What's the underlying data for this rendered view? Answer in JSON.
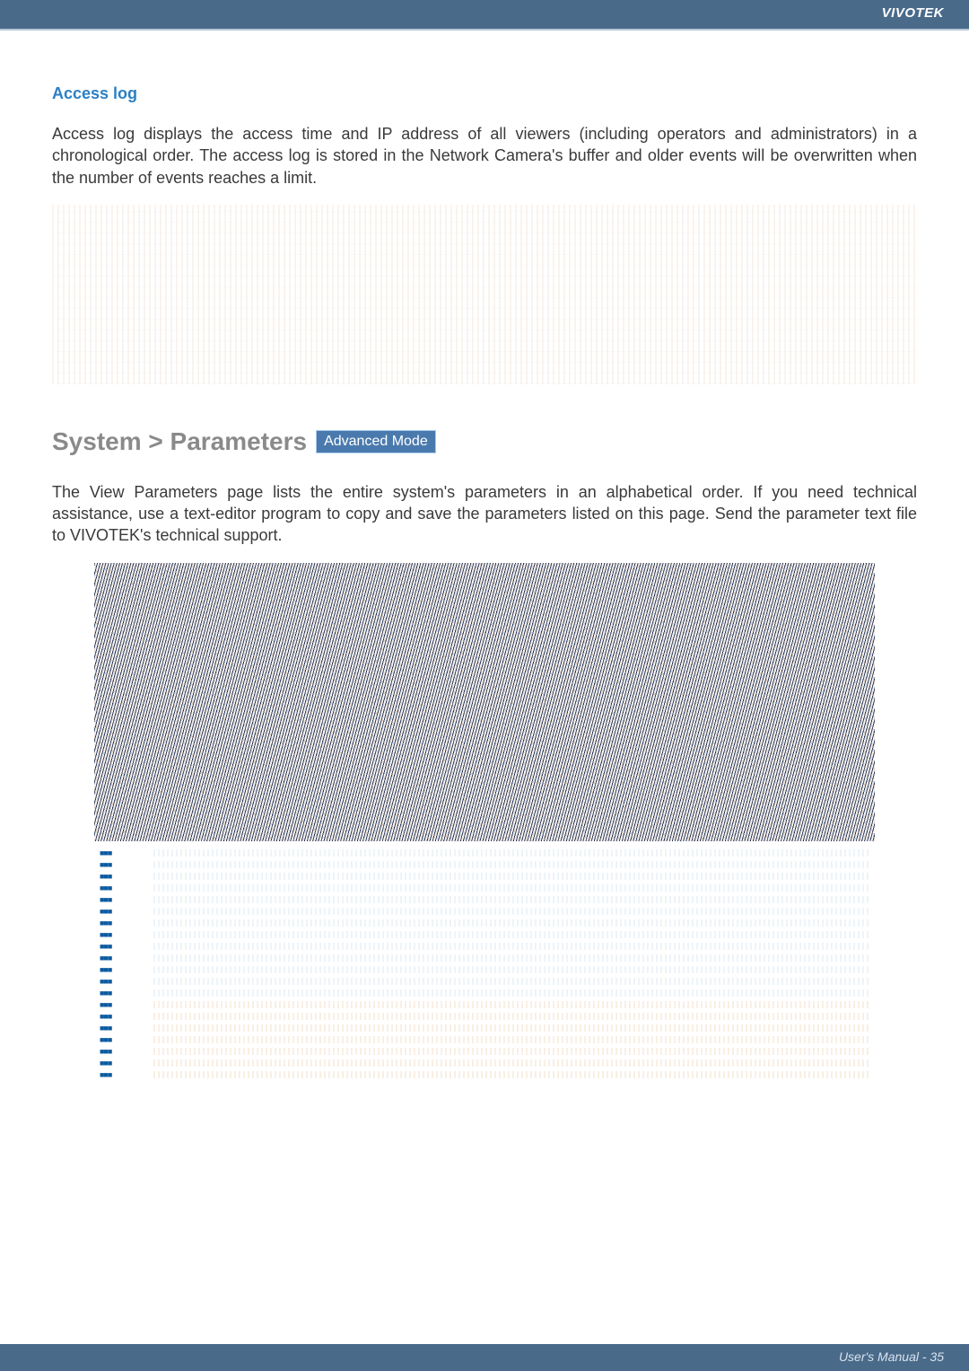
{
  "brand": "VIVOTEK",
  "section1": {
    "heading": "Access log",
    "paragraph": "Access log displays the access time and IP address of all viewers (including operators and administrators) in a chronological order. The access log is stored in the Network Camera's buffer and older events will be overwritten when the number of events reaches a limit."
  },
  "section2": {
    "heading": "System > Parameters",
    "badge": "Advanced Mode",
    "paragraph": "The View Parameters page lists the entire system's parameters in an alphabetical order. If you need technical assistance, use a text-editor program to copy and save the parameters listed on this page. Send the parameter text file to VIVOTEK's technical support."
  },
  "footer": "User's Manual - 35",
  "param_rows": 20
}
